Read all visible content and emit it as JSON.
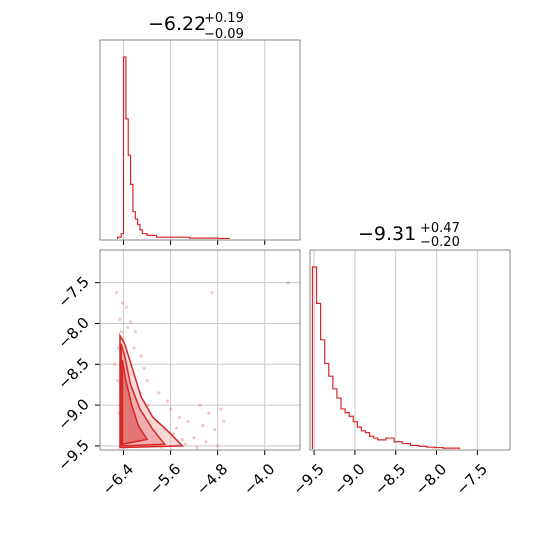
{
  "chart_data": [
    {
      "type": "histogram",
      "panel": "top-left",
      "title": {
        "value": "−6.22",
        "plus": "+0.19",
        "minus": "−0.09"
      },
      "xlim": [
        -6.8,
        -3.4
      ],
      "ylabel": "",
      "color": "#d62728",
      "bin_edges": [
        -6.5,
        -6.44,
        -6.4,
        -6.36,
        -6.32,
        -6.28,
        -6.24,
        -6.2,
        -6.16,
        -6.12,
        -6.08,
        -6.0,
        -5.92,
        -5.84,
        -5.72,
        -5.6,
        -5.44,
        -5.28,
        -5.04,
        -4.8,
        -4.6
      ],
      "counts": [
        1,
        3,
        100,
        66,
        46,
        30,
        15,
        11,
        8,
        5,
        3,
        2,
        2,
        1,
        1,
        1,
        1,
        0.5,
        0.5,
        0.3
      ],
      "x_ticks": [
        "−6.4",
        "−5.6",
        "−4.8",
        "−4.0"
      ],
      "x_tick_values": [
        -6.4,
        -5.6,
        -4.8,
        -4.0
      ]
    },
    {
      "type": "scatter+contour",
      "panel": "bottom-left",
      "xlim": [
        -6.8,
        -3.4
      ],
      "ylim": [
        -9.55,
        -7.1
      ],
      "color": "#d62728",
      "x_ticks": [
        "−6.4",
        "−5.6",
        "−4.8",
        "−4.0"
      ],
      "x_tick_values": [
        -6.4,
        -5.6,
        -4.8,
        -4.0
      ],
      "y_ticks": [
        "−9.5",
        "−9.0",
        "−8.5",
        "−8.0",
        "−7.5"
      ],
      "y_tick_values": [
        -9.5,
        -9.0,
        -8.5,
        -8.0,
        -7.5
      ],
      "points": [
        [
          -6.52,
          -7.62
        ],
        [
          -6.46,
          -7.95
        ],
        [
          -6.44,
          -8.1
        ],
        [
          -6.41,
          -8.2
        ],
        [
          -6.38,
          -8.35
        ],
        [
          -6.36,
          -8.55
        ],
        [
          -6.3,
          -8.62
        ],
        [
          -6.25,
          -8.8
        ],
        [
          -6.2,
          -8.95
        ],
        [
          -6.15,
          -9.05
        ],
        [
          -6.05,
          -9.12
        ],
        [
          -5.95,
          -9.2
        ],
        [
          -5.85,
          -9.3
        ],
        [
          -5.7,
          -9.3
        ],
        [
          -5.55,
          -9.35
        ],
        [
          -5.4,
          -9.42
        ],
        [
          -5.2,
          -9.4
        ],
        [
          -5.0,
          -9.45
        ],
        [
          -4.85,
          -9.3
        ],
        [
          -4.95,
          -9.1
        ],
        [
          -5.1,
          -9.0
        ],
        [
          -5.3,
          -9.2
        ],
        [
          -5.6,
          -9.05
        ],
        [
          -5.8,
          -8.85
        ],
        [
          -6.0,
          -8.7
        ],
        [
          -6.1,
          -8.4
        ],
        [
          -6.2,
          -8.1
        ],
        [
          -6.28,
          -7.98
        ],
        [
          -6.35,
          -7.8
        ],
        [
          -6.48,
          -8.3
        ],
        [
          -6.5,
          -8.7
        ],
        [
          -6.47,
          -9.1
        ],
        [
          -6.4,
          -9.35
        ],
        [
          -6.3,
          -9.45
        ],
        [
          -6.15,
          -9.5
        ],
        [
          -5.9,
          -9.48
        ],
        [
          -5.75,
          -9.52
        ],
        [
          -4.9,
          -7.62
        ],
        [
          -3.6,
          -7.5
        ],
        [
          -4.7,
          -9.2
        ],
        [
          -4.8,
          -9.5
        ],
        [
          -5.05,
          -9.25
        ],
        [
          -5.45,
          -9.15
        ],
        [
          -5.65,
          -8.95
        ],
        [
          -6.05,
          -8.55
        ],
        [
          -6.22,
          -8.3
        ],
        [
          -6.33,
          -8.05
        ],
        [
          -6.42,
          -7.75
        ],
        [
          -6.55,
          -8.5
        ],
        [
          -6.12,
          -8.85
        ],
        [
          -5.98,
          -9.0
        ],
        [
          -5.5,
          -9.28
        ],
        [
          -5.35,
          -9.48
        ],
        [
          -5.15,
          -9.52
        ],
        [
          -4.75,
          -9.05
        ]
      ],
      "contours": [
        {
          "level": "outer",
          "path_data": [
            [
              -6.46,
              -8.15
            ],
            [
              -6.38,
              -8.25
            ],
            [
              -6.25,
              -8.55
            ],
            [
              -6.1,
              -8.9
            ],
            [
              -5.9,
              -9.15
            ],
            [
              -5.6,
              -9.35
            ],
            [
              -5.4,
              -9.5
            ],
            [
              -6.46,
              -9.52
            ]
          ]
        },
        {
          "level": "middle",
          "path_data": [
            [
              -6.44,
              -8.25
            ],
            [
              -6.38,
              -8.4
            ],
            [
              -6.28,
              -8.75
            ],
            [
              -6.12,
              -9.05
            ],
            [
              -5.9,
              -9.3
            ],
            [
              -5.7,
              -9.48
            ],
            [
              -6.44,
              -9.5
            ]
          ]
        },
        {
          "level": "inner",
          "path_data": [
            [
              -6.42,
              -8.45
            ],
            [
              -6.36,
              -8.7
            ],
            [
              -6.26,
              -9.0
            ],
            [
              -6.15,
              -9.25
            ],
            [
              -6.0,
              -9.42
            ],
            [
              -6.42,
              -9.48
            ]
          ]
        }
      ]
    },
    {
      "type": "histogram",
      "panel": "bottom-right",
      "title": {
        "value": "−9.31",
        "plus": "+0.47",
        "minus": "−0.20"
      },
      "xlim": [
        -9.55,
        -7.1
      ],
      "color": "#d62728",
      "bin_edges": [
        -9.52,
        -9.47,
        -9.42,
        -9.37,
        -9.32,
        -9.27,
        -9.22,
        -9.17,
        -9.12,
        -9.07,
        -9.02,
        -8.97,
        -8.92,
        -8.87,
        -8.82,
        -8.77,
        -8.72,
        -8.62,
        -8.52,
        -8.42,
        -8.32,
        -8.22,
        -8.12,
        -8.02,
        -7.92,
        -7.82,
        -7.72
      ],
      "counts": [
        100,
        80,
        60,
        47,
        40,
        33,
        28,
        22,
        20,
        18,
        15,
        12,
        10,
        9,
        7,
        6,
        5,
        6,
        4,
        3,
        2,
        1.5,
        1,
        0.8,
        0.5,
        0.5
      ],
      "x_ticks": [
        "−9.5",
        "−9.0",
        "−8.5",
        "−8.0",
        "−7.5"
      ],
      "x_tick_values": [
        -9.5,
        -9.0,
        -8.5,
        -8.0,
        -7.5
      ]
    }
  ]
}
